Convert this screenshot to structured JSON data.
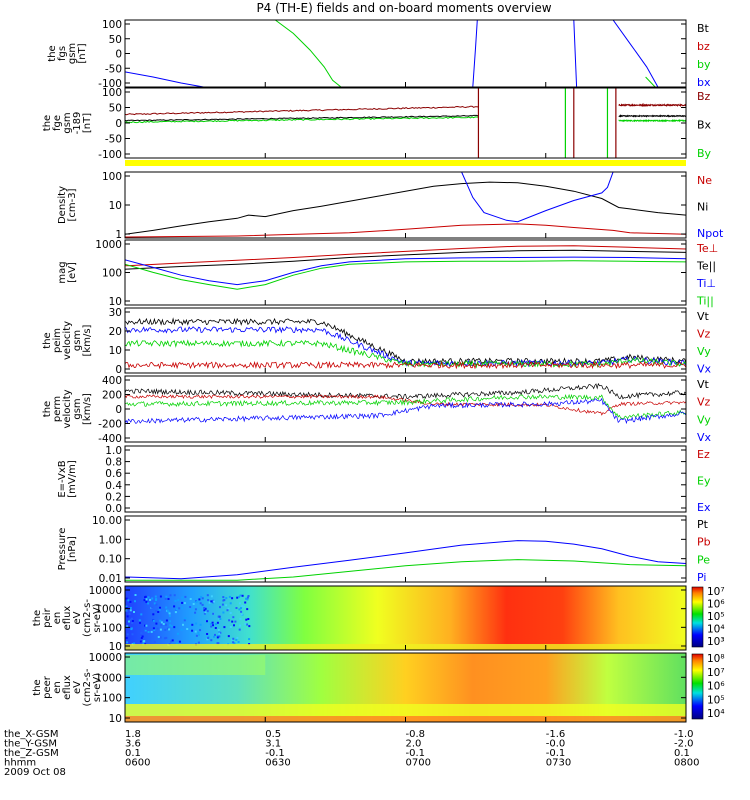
{
  "title": "P4 (TH-E) fields and on-board moments overview",
  "footer": {
    "row_labels": [
      "the_X-GSM",
      "the_Y-GSM",
      "the_Z-GSM",
      "hhmm"
    ],
    "date": "2009 Oct 08",
    "columns": [
      [
        "1.8",
        "3.6",
        "0.1",
        "0600"
      ],
      [
        "0.5",
        "3.1",
        "-0.1",
        "0630"
      ],
      [
        "-0.8",
        "2.0",
        "-0.1",
        "0700"
      ],
      [
        "-1.6",
        "-0.0",
        "-0.1",
        "0730"
      ],
      [
        "-1.0",
        "-2.0",
        "0.1",
        "0800"
      ]
    ]
  },
  "colors": {
    "black": "#000000",
    "red": "#c80000",
    "green": "#00d200",
    "blue": "#0000ff",
    "darkred": "#8b0000",
    "yellow": "#ffff00"
  },
  "chart_data": [
    {
      "id": "fgs",
      "type": "line",
      "ylabel": [
        "the",
        "fgs",
        "gsm",
        "[nT]"
      ],
      "yticks": [
        "100",
        "50",
        "0",
        "-50",
        "-100"
      ],
      "ylim": [
        -100,
        100
      ],
      "legend": [
        {
          "name": "Bt",
          "color": "#000000"
        },
        {
          "name": "bz",
          "color": "#c80000"
        },
        {
          "name": "by",
          "color": "#00d200"
        },
        {
          "name": "bx",
          "color": "#0000ff"
        }
      ],
      "series": [
        {
          "name": "by",
          "color": "#00d200",
          "points": [
            [
              0.268,
              100
            ],
            [
              0.3,
              60
            ],
            [
              0.33,
              10
            ],
            [
              0.355,
              -40
            ],
            [
              0.37,
              -80
            ],
            [
              0.385,
              -100
            ]
          ]
        },
        {
          "name": "bx",
          "color": "#0000ff",
          "points": [
            [
              0.0,
              -55
            ],
            [
              0.05,
              -70
            ],
            [
              0.1,
              -88
            ],
            [
              0.14,
              -100
            ]
          ]
        },
        {
          "name": "bx",
          "color": "#0000ff",
          "points": [
            [
              0.62,
              -100
            ],
            [
              0.625,
              20
            ],
            [
              0.628,
              100
            ]
          ]
        },
        {
          "name": "bx",
          "color": "#0000ff",
          "points": [
            [
              0.8,
              100
            ],
            [
              0.805,
              -100
            ]
          ]
        },
        {
          "name": "bx",
          "color": "#0000ff",
          "points": [
            [
              0.87,
              100
            ],
            [
              0.9,
              30
            ],
            [
              0.93,
              -40
            ],
            [
              0.95,
              -100
            ]
          ]
        },
        {
          "name": "by",
          "color": "#00d200",
          "points": [
            [
              0.928,
              -70
            ],
            [
              0.945,
              -100
            ]
          ]
        }
      ]
    },
    {
      "id": "fge",
      "type": "line",
      "ylabel": [
        "the",
        "fge",
        "gsm",
        "-189",
        "[nT]"
      ],
      "yticks": [
        "100",
        "50",
        "0",
        "-50",
        "-100"
      ],
      "ylim": [
        -125,
        100
      ],
      "legend": [
        {
          "name": "Bz",
          "color": "#8b0000"
        },
        {
          "name": "Bx",
          "color": "#000000"
        },
        {
          "name": "By",
          "color": "#00d200"
        }
      ]
    },
    {
      "id": "density",
      "type": "line",
      "log": true,
      "ylabel": [
        "Density",
        "[cm-3]"
      ],
      "yticks": [
        "100",
        "10",
        "1"
      ],
      "ylim": [
        0.5,
        200
      ],
      "legend": [
        {
          "name": "Ne",
          "color": "#c80000"
        },
        {
          "name": "Ni",
          "color": "#000000"
        },
        {
          "name": "Npot",
          "color": "#0000ff"
        }
      ],
      "series": [
        {
          "name": "Ni",
          "color": "#000000",
          "points": [
            [
              0,
              0.7
            ],
            [
              0.05,
              1.0
            ],
            [
              0.1,
              1.5
            ],
            [
              0.15,
              2.2
            ],
            [
              0.2,
              3.0
            ],
            [
              0.22,
              4.0
            ],
            [
              0.25,
              3.5
            ],
            [
              0.3,
              6
            ],
            [
              0.35,
              9
            ],
            [
              0.4,
              14
            ],
            [
              0.45,
              22
            ],
            [
              0.5,
              35
            ],
            [
              0.55,
              55
            ],
            [
              0.6,
              70
            ],
            [
              0.65,
              80
            ],
            [
              0.7,
              75
            ],
            [
              0.75,
              55
            ],
            [
              0.8,
              35
            ],
            [
              0.85,
              18
            ],
            [
              0.88,
              8
            ],
            [
              0.9,
              7
            ],
            [
              0.95,
              5
            ],
            [
              1.0,
              4
            ]
          ]
        },
        {
          "name": "Ne",
          "color": "#c80000",
          "points": [
            [
              0,
              0.55
            ],
            [
              0.2,
              0.6
            ],
            [
              0.4,
              0.8
            ],
            [
              0.5,
              1.1
            ],
            [
              0.6,
              1.6
            ],
            [
              0.7,
              1.8
            ],
            [
              0.75,
              1.6
            ],
            [
              0.8,
              1.3
            ],
            [
              0.87,
              1.0
            ],
            [
              0.9,
              0.8
            ],
            [
              1.0,
              0.7
            ]
          ]
        },
        {
          "name": "Npot",
          "color": "#0000ff",
          "points": [
            [
              0.6,
              200
            ],
            [
              0.62,
              20
            ],
            [
              0.64,
              5
            ],
            [
              0.68,
              2.5
            ],
            [
              0.7,
              2.2
            ],
            [
              0.75,
              6
            ],
            [
              0.8,
              15
            ],
            [
              0.85,
              30
            ],
            [
              0.86,
              50
            ],
            [
              0.87,
              200
            ]
          ]
        }
      ]
    },
    {
      "id": "temp",
      "type": "line",
      "log": true,
      "ylabel": [
        "mag",
        "[eV]"
      ],
      "yticks": [
        "1000",
        "100",
        "10"
      ],
      "ylim": [
        10,
        1200
      ],
      "legend": [
        {
          "name": "Te⊥",
          "color": "#c80000"
        },
        {
          "name": "Te||",
          "color": "#000000"
        },
        {
          "name": "Ti⊥",
          "color": "#0000ff"
        },
        {
          "name": "Ti||",
          "color": "#00d200"
        }
      ],
      "series": [
        {
          "name": "Te⊥",
          "color": "#c80000",
          "points": [
            [
              0,
              180
            ],
            [
              0.1,
              220
            ],
            [
              0.2,
              270
            ],
            [
              0.3,
              330
            ],
            [
              0.4,
              420
            ],
            [
              0.5,
              520
            ],
            [
              0.6,
              640
            ],
            [
              0.7,
              760
            ],
            [
              0.8,
              780
            ],
            [
              0.9,
              700
            ],
            [
              1.0,
              620
            ]
          ]
        },
        {
          "name": "Te||",
          "color": "#000000",
          "points": [
            [
              0,
              140
            ],
            [
              0.1,
              170
            ],
            [
              0.2,
              200
            ],
            [
              0.3,
              250
            ],
            [
              0.4,
              330
            ],
            [
              0.5,
              400
            ],
            [
              0.6,
              480
            ],
            [
              0.7,
              540
            ],
            [
              0.8,
              560
            ],
            [
              0.9,
              520
            ],
            [
              1.0,
              480
            ]
          ]
        },
        {
          "name": "Ti⊥",
          "color": "#0000ff",
          "points": [
            [
              0,
              280
            ],
            [
              0.05,
              160
            ],
            [
              0.1,
              90
            ],
            [
              0.15,
              60
            ],
            [
              0.2,
              45
            ],
            [
              0.25,
              60
            ],
            [
              0.3,
              110
            ],
            [
              0.35,
              180
            ],
            [
              0.4,
              240
            ],
            [
              0.5,
              300
            ],
            [
              0.6,
              320
            ],
            [
              0.7,
              330
            ],
            [
              0.8,
              340
            ],
            [
              0.9,
              330
            ],
            [
              1.0,
              300
            ]
          ]
        },
        {
          "name": "Ti||",
          "color": "#00d200",
          "points": [
            [
              0,
              200
            ],
            [
              0.05,
              110
            ],
            [
              0.1,
              65
            ],
            [
              0.15,
              45
            ],
            [
              0.2,
              32
            ],
            [
              0.25,
              45
            ],
            [
              0.3,
              90
            ],
            [
              0.35,
              150
            ],
            [
              0.4,
              200
            ],
            [
              0.5,
              240
            ],
            [
              0.6,
              250
            ],
            [
              0.7,
              250
            ],
            [
              0.8,
              260
            ],
            [
              0.9,
              250
            ],
            [
              1.0,
              240
            ]
          ]
        }
      ]
    },
    {
      "id": "peim",
      "type": "line",
      "ylabel": [
        "the",
        "peim",
        "velocity",
        "gsm",
        "[km/s]"
      ],
      "yticks": [
        "30",
        "20",
        "10",
        "0"
      ],
      "ylim": [
        -3,
        30
      ],
      "legend": [
        {
          "name": "Vt",
          "color": "#000000"
        },
        {
          "name": "Vz",
          "color": "#c80000"
        },
        {
          "name": "Vy",
          "color": "#00d200"
        },
        {
          "name": "Vx",
          "color": "#0000ff"
        }
      ]
    },
    {
      "id": "perm",
      "type": "line",
      "ylabel": [
        "the",
        "perm",
        "velocity",
        "gsm",
        "[km/s]"
      ],
      "yticks": [
        "400",
        "200",
        "0",
        "-200",
        "-400"
      ],
      "ylim": [
        -400,
        400
      ],
      "legend": [
        {
          "name": "Vt",
          "color": "#000000"
        },
        {
          "name": "Vz",
          "color": "#c80000"
        },
        {
          "name": "Vy",
          "color": "#00d200"
        },
        {
          "name": "Vx",
          "color": "#0000ff"
        }
      ]
    },
    {
      "id": "efield",
      "type": "line",
      "ylabel": [
        "E=-VxB",
        "[mV/m]"
      ],
      "yticks": [
        "1.0",
        "0.8",
        "0.6",
        "0.4",
        "0.2",
        "0.0"
      ],
      "ylim": [
        0,
        1
      ],
      "legend": [
        {
          "name": "Ez",
          "color": "#c80000"
        },
        {
          "name": "Ey",
          "color": "#00d200"
        },
        {
          "name": "Ex",
          "color": "#0000ff"
        }
      ]
    },
    {
      "id": "pressure",
      "type": "line",
      "log": true,
      "ylabel": [
        "Pressure",
        "[nPa]"
      ],
      "yticks": [
        "10.00",
        "1.00",
        "0.10",
        "0.01"
      ],
      "ylim": [
        0.008,
        30
      ],
      "legend": [
        {
          "name": "Pt",
          "color": "#000000"
        },
        {
          "name": "Pb",
          "color": "#c80000"
        },
        {
          "name": "Pe",
          "color": "#00d200"
        },
        {
          "name": "Pi",
          "color": "#0000ff"
        }
      ],
      "series": [
        {
          "name": "Pi",
          "color": "#0000ff",
          "points": [
            [
              0,
              0.015
            ],
            [
              0.1,
              0.012
            ],
            [
              0.2,
              0.02
            ],
            [
              0.3,
              0.05
            ],
            [
              0.4,
              0.12
            ],
            [
              0.5,
              0.3
            ],
            [
              0.6,
              0.8
            ],
            [
              0.7,
              1.4
            ],
            [
              0.75,
              1.3
            ],
            [
              0.8,
              0.9
            ],
            [
              0.85,
              0.5
            ],
            [
              0.9,
              0.2
            ],
            [
              0.95,
              0.1
            ],
            [
              1.0,
              0.08
            ]
          ]
        },
        {
          "name": "Pe",
          "color": "#00d200",
          "points": [
            [
              0,
              0.01
            ],
            [
              0.2,
              0.01
            ],
            [
              0.3,
              0.015
            ],
            [
              0.4,
              0.03
            ],
            [
              0.5,
              0.06
            ],
            [
              0.6,
              0.1
            ],
            [
              0.7,
              0.13
            ],
            [
              0.8,
              0.11
            ],
            [
              0.9,
              0.07
            ],
            [
              1.0,
              0.06
            ]
          ]
        }
      ]
    },
    {
      "id": "peir",
      "type": "heatmap",
      "ylabel": [
        "the",
        "peir",
        "en",
        "eflux",
        "eV",
        "(cm2-s-",
        "sr-eV)"
      ],
      "yticks": [
        "10000",
        "1000",
        "100",
        "10"
      ],
      "colorbar": [
        "10⁷",
        "10⁶",
        "10⁵",
        "10⁴",
        "10³"
      ]
    },
    {
      "id": "peer",
      "type": "heatmap",
      "ylabel": [
        "the",
        "peer",
        "en",
        "eflux",
        "eV",
        "(cm2-s-",
        "sr-eV)"
      ],
      "yticks": [
        "10000",
        "1000",
        "100",
        "10"
      ],
      "colorbar": [
        "10⁸",
        "10⁷",
        "10⁶",
        "10⁵",
        "10⁴"
      ]
    }
  ]
}
